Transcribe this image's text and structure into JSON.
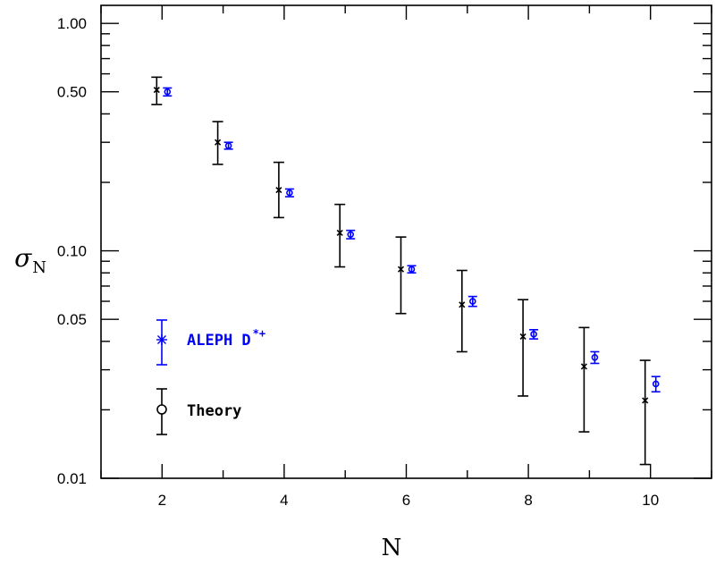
{
  "chart_data": {
    "type": "scatter",
    "xlabel": "N",
    "ylabel_symbol": "σ",
    "ylabel_subscript": "N",
    "xlim": [
      1,
      11
    ],
    "ylim": [
      0.01,
      1.2
    ],
    "yscale": "log",
    "x_ticks": [
      2,
      4,
      6,
      8,
      10
    ],
    "y_ticks": [
      {
        "value": 0.01,
        "label": "0.01"
      },
      {
        "value": 0.05,
        "label": "0.05"
      },
      {
        "value": 0.1,
        "label": "0.10"
      },
      {
        "value": 0.5,
        "label": "0.50"
      },
      {
        "value": 1.0,
        "label": "1.00"
      }
    ],
    "grid": false,
    "legend_position": "lower-left",
    "series": [
      {
        "name": "ALEPH D*+",
        "legend_label": "ALEPH D",
        "legend_superscript": "*+",
        "color": "#0000ff",
        "marker": "circle",
        "points": [
          {
            "x": 2,
            "y": 0.5,
            "lo": 0.48,
            "hi": 0.52
          },
          {
            "x": 3,
            "y": 0.29,
            "lo": 0.28,
            "hi": 0.3
          },
          {
            "x": 4,
            "y": 0.18,
            "lo": 0.173,
            "hi": 0.187
          },
          {
            "x": 5,
            "y": 0.118,
            "lo": 0.113,
            "hi": 0.123
          },
          {
            "x": 6,
            "y": 0.083,
            "lo": 0.08,
            "hi": 0.086
          },
          {
            "x": 7,
            "y": 0.06,
            "lo": 0.057,
            "hi": 0.063
          },
          {
            "x": 8,
            "y": 0.043,
            "lo": 0.041,
            "hi": 0.045
          },
          {
            "x": 9,
            "y": 0.034,
            "lo": 0.032,
            "hi": 0.036
          },
          {
            "x": 10,
            "y": 0.026,
            "lo": 0.024,
            "hi": 0.028
          }
        ]
      },
      {
        "name": "Theory",
        "legend_label": "Theory",
        "color": "#000000",
        "marker": "cross",
        "points": [
          {
            "x": 2,
            "y": 0.51,
            "lo": 0.44,
            "hi": 0.58
          },
          {
            "x": 3,
            "y": 0.3,
            "lo": 0.24,
            "hi": 0.37
          },
          {
            "x": 4,
            "y": 0.185,
            "lo": 0.14,
            "hi": 0.245
          },
          {
            "x": 5,
            "y": 0.12,
            "lo": 0.085,
            "hi": 0.16
          },
          {
            "x": 6,
            "y": 0.083,
            "lo": 0.053,
            "hi": 0.115
          },
          {
            "x": 7,
            "y": 0.058,
            "lo": 0.036,
            "hi": 0.082
          },
          {
            "x": 8,
            "y": 0.042,
            "lo": 0.023,
            "hi": 0.061
          },
          {
            "x": 9,
            "y": 0.031,
            "lo": 0.016,
            "hi": 0.046
          },
          {
            "x": 10,
            "y": 0.022,
            "lo": 0.0115,
            "hi": 0.033
          }
        ]
      }
    ]
  }
}
